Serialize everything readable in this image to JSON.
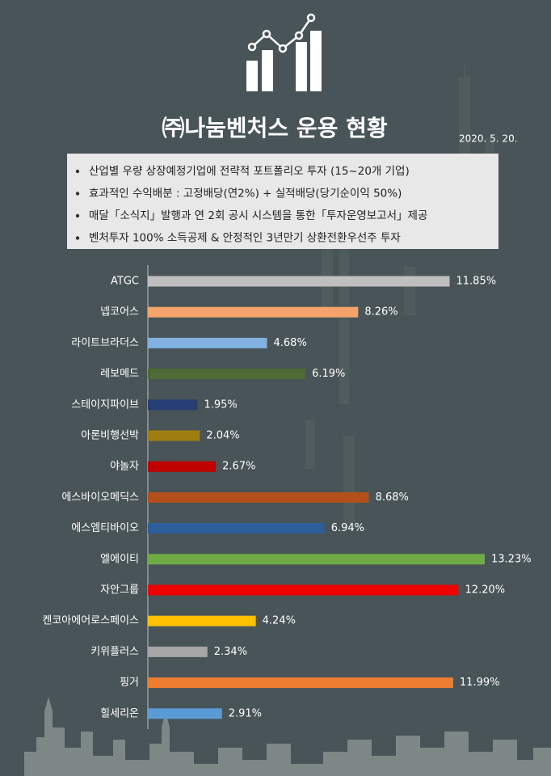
{
  "title": "㈜나눔벤처스 운용 현황",
  "date": "2020. 5. 20.",
  "bullets": [
    "산업별 우량 상장예정기업에 전략적 포트폴리오 투자 (15~20개 기업)",
    "효과적인 수익배분 : 고정배당(연2%) + 실적배당(당기순이익 50%)",
    "매달「소식지」발행과 연 2회 공시 시스템을 통한「투자운영보고서」제공",
    "벤처투자 100% 소득공제 & 안정적인 3년만기 상환전환우선주 투자"
  ],
  "chart_data": {
    "type": "hbar",
    "categories": [
      "ATGC",
      "넵코어스",
      "라이트브라더스",
      "레보메드",
      "스테이지파이브",
      "아론비행선박",
      "야놀자",
      "에스바이오메딕스",
      "에스엠티바이오",
      "엘에이티",
      "자안그룹",
      "켄코아에어로스페이스",
      "키위플러스",
      "핑거",
      "힐세리온"
    ],
    "values": [
      11.85,
      8.26,
      4.68,
      6.19,
      1.95,
      2.04,
      2.67,
      8.68,
      6.94,
      13.23,
      12.2,
      4.24,
      2.34,
      11.99,
      2.91
    ],
    "value_labels": [
      "11.85%",
      "8.26%",
      "4.68%",
      "6.19%",
      "1.95%",
      "2.04%",
      "2.67%",
      "8.68%",
      "6.94%",
      "13.23%",
      "12.20%",
      "4.24%",
      "2.34%",
      "11.99%",
      "2.91%"
    ],
    "colors": [
      "#bfbfbf",
      "#f4a46a",
      "#80b1e0",
      "#4e6b35",
      "#263f74",
      "#a07d10",
      "#c00000",
      "#b3501a",
      "#2c5f9a",
      "#6fac46",
      "#ee0000",
      "#ffc000",
      "#a6a6a6",
      "#ed7d31",
      "#5b9bd5"
    ]
  }
}
